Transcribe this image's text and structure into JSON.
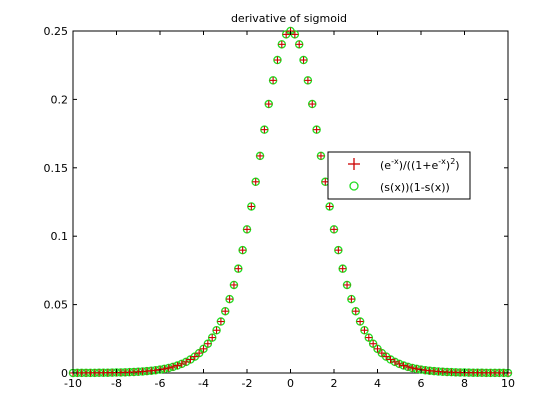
{
  "chart_data": {
    "type": "scatter",
    "title": "derivative of sigmoid",
    "xlabel": "",
    "ylabel": "",
    "xlim": [
      -10,
      10
    ],
    "ylim": [
      0,
      0.25
    ],
    "x_ticks": [
      -10,
      -8,
      -6,
      -4,
      -2,
      0,
      2,
      4,
      6,
      8,
      10
    ],
    "y_ticks": [
      0,
      0.05,
      0.1,
      0.15,
      0.2,
      0.25
    ],
    "x_tick_labels": [
      "-10",
      "-8",
      "-6",
      "-4",
      "-2",
      "0",
      "2",
      "4",
      "6",
      "8",
      "10"
    ],
    "y_tick_labels": [
      "0",
      "0.05",
      "0.1",
      "0.15",
      "0.2",
      "0.25"
    ],
    "grid": false,
    "legend_position": "center-right",
    "x_step": 0.2,
    "series": [
      {
        "name": "(e^{-x})/((1+e^{-x})^{2})",
        "marker": "plus",
        "color": "#cc0000",
        "formula": "exp(-x)/(1+exp(-x))^2"
      },
      {
        "name": "(s(x))(1-s(x))",
        "marker": "circle",
        "color": "#22dd22",
        "formula": "s(x)*(1-s(x)), s(x)=1/(1+exp(-x))"
      }
    ]
  }
}
